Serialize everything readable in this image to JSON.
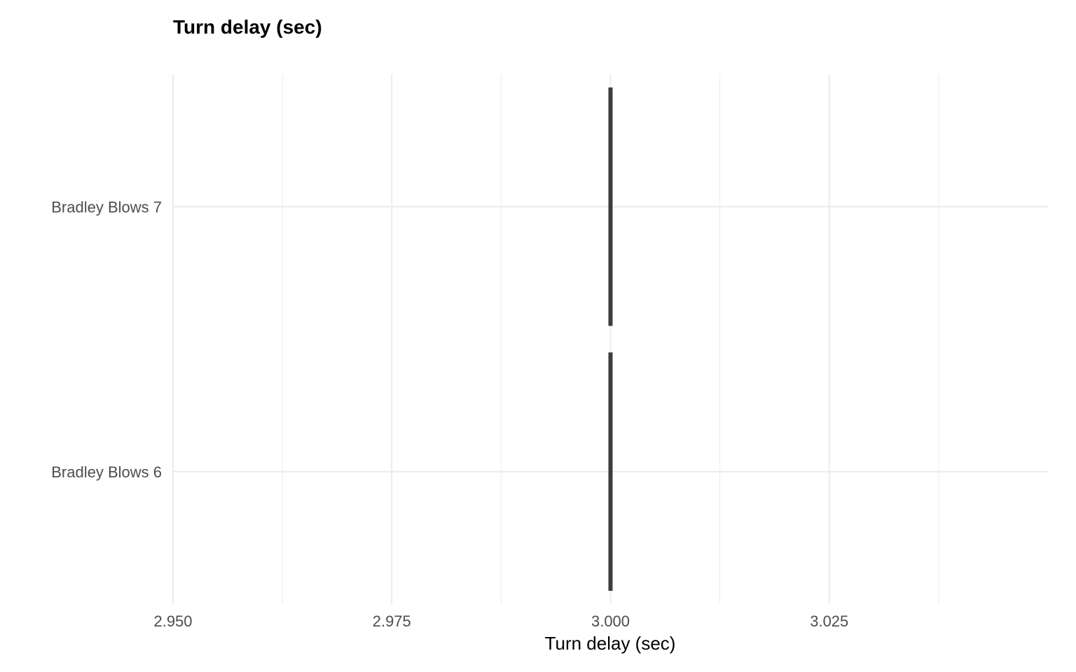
{
  "chart_data": {
    "type": "bar",
    "title": "Turn delay (sec)",
    "xlabel": "Turn delay (sec)",
    "ylabel": "",
    "orientation": "horizontal",
    "categories": [
      "Bradley Blows 6",
      "Bradley Blows 7"
    ],
    "values": [
      3.0,
      3.0
    ],
    "xlim": [
      2.95,
      3.05
    ],
    "x_ticks": [
      2.95,
      2.975,
      3.0,
      3.025
    ],
    "x_tick_labels": [
      "2.950",
      "2.975",
      "3.000",
      "3.025"
    ],
    "grid": true,
    "legend": "none",
    "mark_color": "#3d3d3d",
    "grid_color": "#ebebeb"
  }
}
